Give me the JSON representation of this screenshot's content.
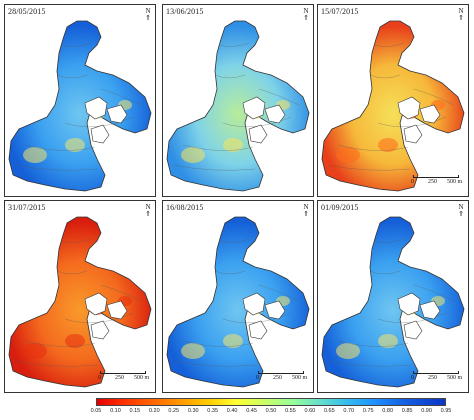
{
  "panels": [
    {
      "date": "28/05/2015",
      "palette": "blue"
    },
    {
      "date": "13/06/2015",
      "palette": "cyan"
    },
    {
      "date": "15/07/2015",
      "palette": "orange"
    },
    {
      "date": "31/07/2015",
      "palette": "red"
    },
    {
      "date": "16/08/2015",
      "palette": "blue"
    },
    {
      "date": "01/09/2015",
      "palette": "blue"
    }
  ],
  "scale_bar": {
    "l0": "0",
    "l1": "250",
    "l2": "500 m"
  },
  "north_arrow": "N",
  "colorbar": {
    "ticks": [
      "0.05",
      "0.10",
      "0.15",
      "0.20",
      "0.25",
      "0.30",
      "0.35",
      "0.40",
      "0.45",
      "0.50",
      "0.55",
      "0.60",
      "0.65",
      "0.70",
      "0.75",
      "0.80",
      "0.85",
      "0.90",
      "0.95"
    ],
    "colors": [
      "#e60000",
      "#ff6600",
      "#ffcc00",
      "#ccff66",
      "#66e0cc",
      "#1e90ff",
      "#0b35c8"
    ]
  },
  "palettes": {
    "blue": {
      "main": "#3aa0f0",
      "light": "#6fc6f0",
      "warm": "#f6e46a",
      "dark": "#1560d8"
    },
    "cyan": {
      "main": "#7fd3e8",
      "light": "#b8ec9a",
      "warm": "#f8e35a",
      "dark": "#2f8fe6"
    },
    "orange": {
      "main": "#f6b83a",
      "light": "#f5e05a",
      "warm": "#ff6a1a",
      "dark": "#e8401a"
    },
    "red": {
      "main": "#f46a1e",
      "light": "#f99a2a",
      "warm": "#e83010",
      "dark": "#d81e0e"
    }
  }
}
